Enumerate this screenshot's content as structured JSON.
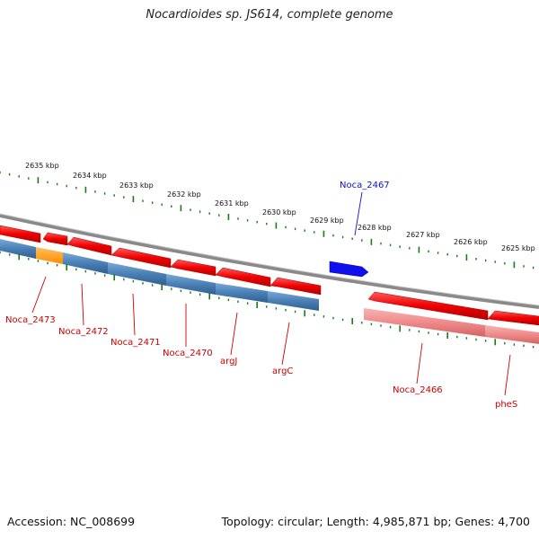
{
  "title": "Nocardioides sp. JS614, complete genome",
  "footer": {
    "accession": "Accession: NC_008699",
    "topology": "Topology: circular; Length: 4,985,871 bp; Genes: 4,700"
  },
  "colors": {
    "forward_gene": "#ee0000",
    "forward_gene_light": "#f08a8a",
    "cds_bar": "#4a7fb5",
    "cds_bar_light": "#e88585",
    "highlight": "#ff9a1a",
    "selected_gene": "#1010ee",
    "tick": "#1a7a1a",
    "backbone": "#8a8888"
  },
  "scale_labels": [
    "2635 kbp",
    "2634 kbp",
    "2633 kbp",
    "2632 kbp",
    "2631 kbp",
    "2630 kbp",
    "2629 kbp",
    "2628 kbp",
    "2627 kbp",
    "2626 kbp",
    "2625 kbp"
  ],
  "gene_labels": {
    "noca_2473": "Noca_2473",
    "noca_2472": "Noca_2472",
    "noca_2471": "Noca_2471",
    "noca_2470": "Noca_2470",
    "argj": "argJ",
    "argc": "argC",
    "noca_2467": "Noca_2467",
    "noca_2466": "Noca_2466",
    "phes": "pheS"
  }
}
